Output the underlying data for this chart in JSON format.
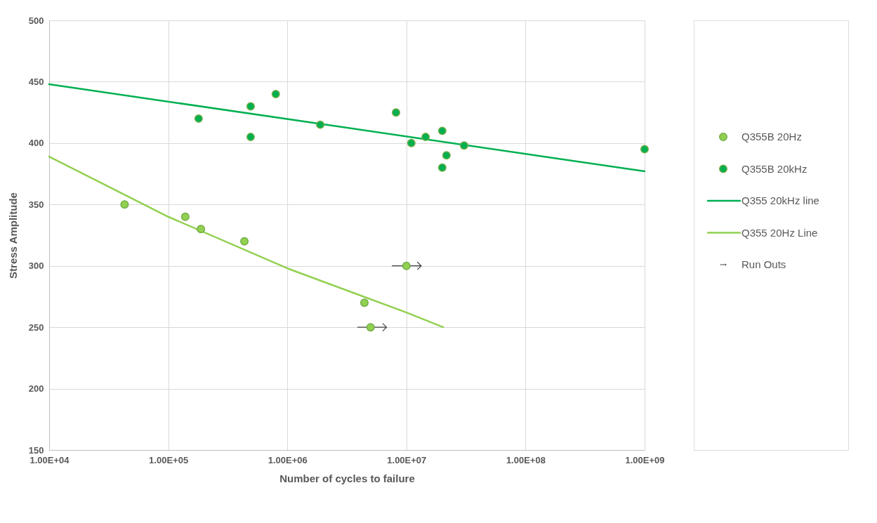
{
  "chart_data": {
    "type": "scatter",
    "xlabel": "Number of cycles to failure",
    "ylabel": "Stress Amplitude",
    "log": "x",
    "grid": true,
    "legend": "right",
    "xlim": [
      10000,
      1000000000
    ],
    "ylim": [
      150,
      500
    ],
    "xticks": [
      {
        "value": 10000,
        "label": "1.00E+04"
      },
      {
        "value": 100000,
        "label": "1.00E+05"
      },
      {
        "value": 1000000,
        "label": "1.00E+06"
      },
      {
        "value": 10000000,
        "label": "1.00E+07"
      },
      {
        "value": 100000000,
        "label": "1.00E+08"
      },
      {
        "value": 1000000000,
        "label": "1.00E+09"
      }
    ],
    "yticks": [
      150,
      200,
      250,
      300,
      350,
      400,
      450,
      500
    ],
    "series": [
      {
        "name": "Q355B 20Hz",
        "marker": "circle",
        "color": "#92d050",
        "x": [
          43000,
          139000,
          188000,
          436000,
          4440000,
          5000000,
          10000000
        ],
        "values": [
          350,
          340,
          330,
          320,
          270,
          250,
          300
        ]
      },
      {
        "name": "Q355B 20kHz",
        "marker": "circle",
        "color": "#00b050",
        "x": [
          180000,
          492000,
          492000,
          800000,
          1890000,
          8180000,
          11000000,
          14500000,
          20000000,
          21700000,
          20000000,
          30500000,
          1000000000
        ],
        "values": [
          420,
          430,
          405,
          440,
          415,
          425,
          400,
          405,
          410,
          390,
          380,
          398,
          395
        ]
      },
      {
        "name": "Q355 20kHz line",
        "type": "line",
        "marker": "none",
        "color": "#00b050",
        "line_style": "solid",
        "x": [
          10000,
          1000000000
        ],
        "values": [
          448,
          377
        ]
      },
      {
        "name": "Q355 20Hz Line",
        "type": "line",
        "marker": "none",
        "color": "#92d050",
        "line_style": "solid",
        "x": [
          10000,
          100000,
          1000000,
          10000000,
          20400000
        ],
        "values": [
          389,
          340,
          298,
          262,
          250
        ]
      },
      {
        "name": "Run Outs",
        "type": "line",
        "color": "#404040",
        "line_style": "solid",
        "x": [
          3900000,
          6800000,
          null,
          7600000,
          13300000
        ],
        "values": [
          250,
          250,
          null,
          300,
          300
        ]
      }
    ]
  }
}
